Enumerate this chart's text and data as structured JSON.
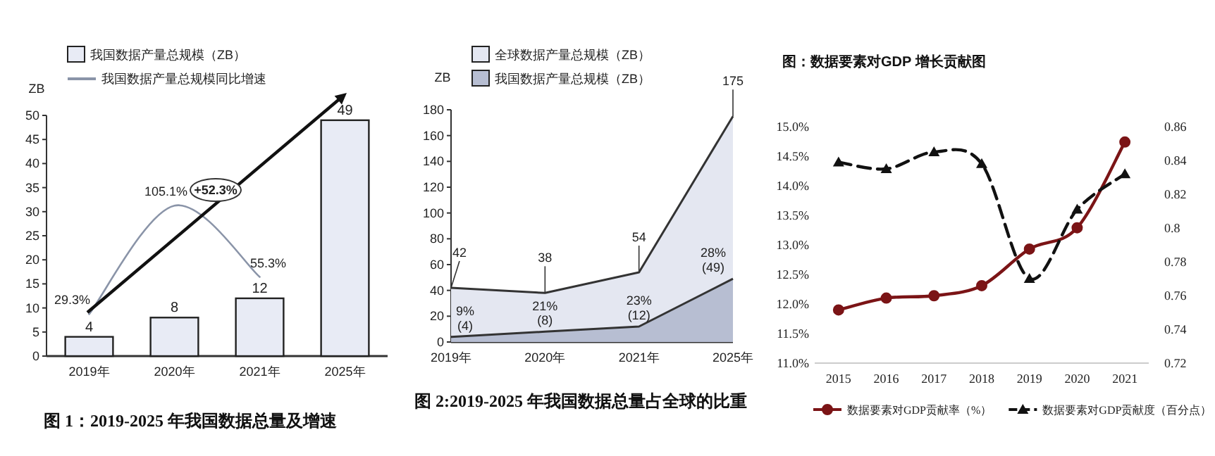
{
  "chart_data": [
    {
      "type": "bar",
      "title": "图 1：2019-2025 年我国数据总量及增速",
      "ylabel": "ZB",
      "categories": [
        "2019年",
        "2020年",
        "2021年",
        "2025年"
      ],
      "series": [
        {
          "name": "我国数据产量总规模（ZB）",
          "color": "#e8ebf5",
          "values": [
            4,
            8,
            12,
            49
          ]
        },
        {
          "name": "我国数据产量总规模同比增速",
          "type": "line",
          "axis": "y2",
          "color": "#8a94a8",
          "values": [
            29.3,
            105.1,
            55.3,
            null
          ],
          "value_labels": [
            "29.3%",
            "105.1%",
            "55.3%",
            null
          ]
        }
      ],
      "data_labels": true,
      "ylim": [
        0,
        50
      ],
      "yticks": [
        0,
        5,
        10,
        15,
        20,
        25,
        30,
        35,
        40,
        45,
        50
      ],
      "legend": "top left",
      "annotations": [
        "+52.3%"
      ]
    },
    {
      "type": "area",
      "title": "图 2:2019-2025 年我国数据总量占全球的比重",
      "ylabel": "ZB",
      "categories": [
        "2019年",
        "2020年",
        "2021年",
        "2025年"
      ],
      "series": [
        {
          "name": "全球数据产量总规模（ZB）",
          "color": "#e4e7f1",
          "values": [
            42,
            38,
            54,
            175
          ],
          "value_labels": [
            "42",
            "38",
            "54",
            "175"
          ]
        },
        {
          "name": "我国数据产量总规模（ZB）",
          "color": "#b7bed2",
          "values": [
            4,
            8,
            12,
            49
          ],
          "value_labels": [
            "9%\n(4)",
            "21%\n(8)",
            "23%\n(12)",
            "28%\n(49)"
          ]
        }
      ],
      "ylim": [
        0,
        180
      ],
      "yticks": [
        0,
        20,
        40,
        60,
        80,
        100,
        120,
        140,
        160,
        180
      ],
      "legend": "top left"
    },
    {
      "type": "line",
      "title": "图：数据要素对GDP 增长贡献图",
      "categories": [
        "2015",
        "2016",
        "2017",
        "2018",
        "2019",
        "2020",
        "2021"
      ],
      "series": [
        {
          "name": "数据要素对GDP贡献率（%）",
          "color": "#7b1416",
          "values": [
            11.9,
            12.1,
            12.14,
            12.31,
            12.93,
            13.29,
            14.74
          ],
          "marker": "circle"
        },
        {
          "name": "数据要素对GDP贡献度（百分点）",
          "color": "#111111",
          "axis": "y2",
          "values": [
            0.839,
            0.835,
            0.845,
            0.838,
            0.77,
            0.811,
            0.832
          ],
          "marker": "triangle",
          "line_style": "dashed"
        }
      ],
      "ylim": [
        11,
        15
      ],
      "yticks": [
        {
          "value": 11,
          "label": "11.0%"
        },
        {
          "value": 11.5,
          "label": "11.5%"
        },
        {
          "value": 12,
          "label": "12.0%"
        },
        {
          "value": 12.5,
          "label": "12.5%"
        },
        {
          "value": 13,
          "label": "13.0%"
        },
        {
          "value": 13.5,
          "label": "13.5%"
        },
        {
          "value": 14,
          "label": "14.0%"
        },
        {
          "value": 14.5,
          "label": "14.5%"
        },
        {
          "value": 15,
          "label": "15.0%"
        }
      ],
      "y2lim": [
        0.72,
        0.86
      ],
      "y2ticks": [
        0.72,
        0.74,
        0.76,
        0.78,
        0.8,
        0.82,
        0.84,
        0.86
      ],
      "legend": "bottom"
    }
  ]
}
